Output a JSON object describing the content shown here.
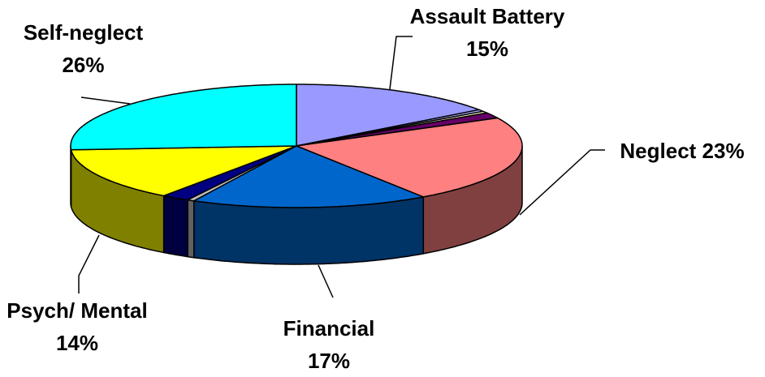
{
  "chart_data": {
    "type": "pie3d",
    "categories": [
      "Assault Battery",
      null,
      null,
      null,
      "Neglect",
      "Financial",
      null,
      null,
      "Psych/ Mental",
      "Self-neglect"
    ],
    "values": [
      15,
      0.5,
      0.5,
      1.5,
      23,
      17,
      0.5,
      2,
      14,
      26
    ],
    "value_labels": [
      "15%",
      null,
      null,
      null,
      "23%",
      "17%",
      null,
      null,
      "14%",
      "26%"
    ],
    "colors": [
      "#9999ff",
      "#aaaaff",
      "#ffffcc",
      "#660066",
      "#ff8080",
      "#0066cc",
      "#c0c0c0",
      "#000080",
      "#ffff00",
      "#00ffff"
    ],
    "start_angle": 0,
    "direction": "clockwise"
  }
}
